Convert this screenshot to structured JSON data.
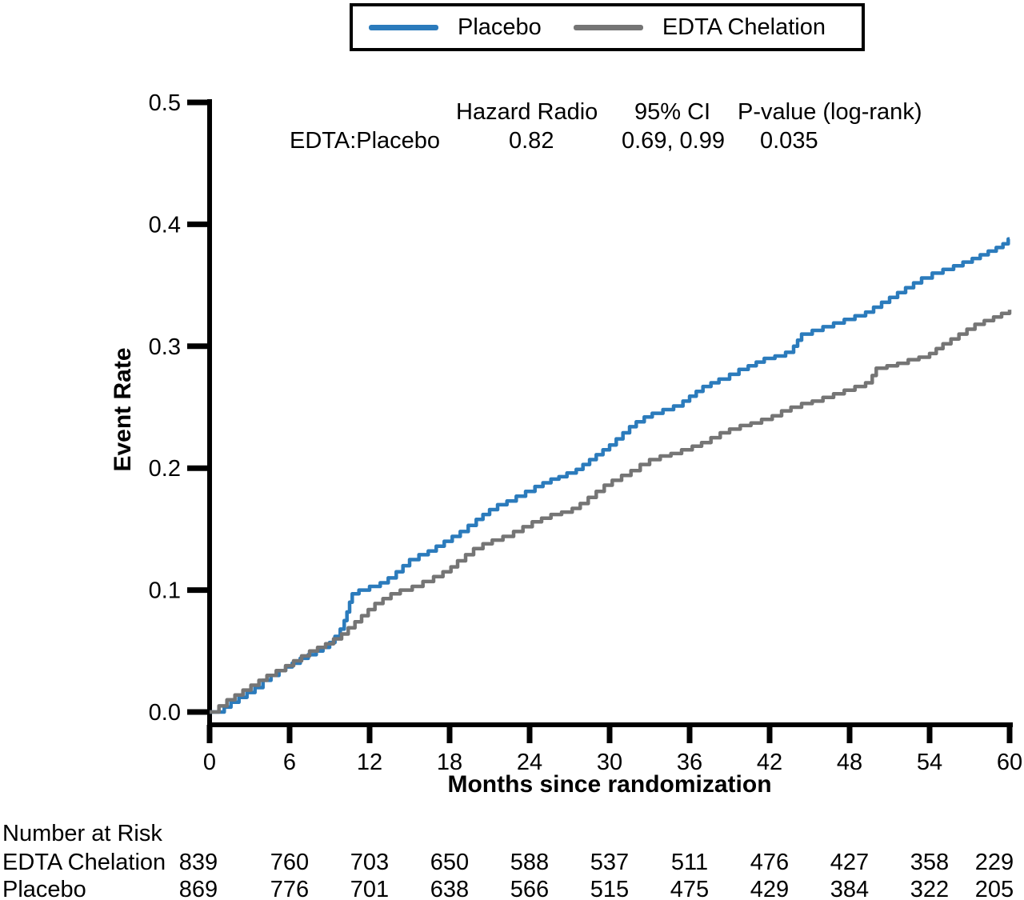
{
  "legend": {
    "items": [
      {
        "label": "Placebo",
        "color": "#2B7BBC"
      },
      {
        "label": "EDTA Chelation",
        "color": "#757575"
      }
    ]
  },
  "stats": {
    "col_hazard": "Hazard Radio",
    "col_ci": "95% CI",
    "col_p": "P-value (log-rank)",
    "row_label": "EDTA:Placebo",
    "hazard_ratio": "0.82",
    "ci": "0.69, 0.99",
    "p_value": "0.035"
  },
  "chart_data": {
    "type": "line",
    "subtype": "step",
    "title": "",
    "xlabel": "Months since randomization",
    "ylabel": "Event Rate",
    "xlim": [
      0,
      60
    ],
    "ylim": [
      0.0,
      0.5
    ],
    "xticks": [
      0,
      6,
      12,
      18,
      24,
      30,
      36,
      42,
      48,
      54,
      60
    ],
    "yticks": [
      "0.0",
      "0.1",
      "0.2",
      "0.3",
      "0.4",
      "0.5"
    ],
    "grid": false,
    "legend_position": "top",
    "series": [
      {
        "name": "Placebo",
        "color": "#2B7BBC",
        "points": [
          [
            0,
            0
          ],
          [
            1.1,
            0.004
          ],
          [
            1.6,
            0.008
          ],
          [
            2.2,
            0.012
          ],
          [
            2.8,
            0.016
          ],
          [
            3.4,
            0.02
          ],
          [
            4,
            0.026
          ],
          [
            4.6,
            0.03
          ],
          [
            5.2,
            0.034
          ],
          [
            5.7,
            0.037
          ],
          [
            6.2,
            0.04
          ],
          [
            6.8,
            0.044
          ],
          [
            7.4,
            0.047
          ],
          [
            8,
            0.05
          ],
          [
            8.5,
            0.053
          ],
          [
            9,
            0.057
          ],
          [
            9.4,
            0.062
          ],
          [
            9.8,
            0.068
          ],
          [
            10.1,
            0.075
          ],
          [
            10.3,
            0.082
          ],
          [
            10.5,
            0.09
          ],
          [
            10.7,
            0.097
          ],
          [
            11.2,
            0.1
          ],
          [
            12,
            0.103
          ],
          [
            12.8,
            0.106
          ],
          [
            13.4,
            0.11
          ],
          [
            14,
            0.115
          ],
          [
            14.5,
            0.12
          ],
          [
            15,
            0.125
          ],
          [
            15.7,
            0.129
          ],
          [
            16.4,
            0.132
          ],
          [
            17,
            0.136
          ],
          [
            17.6,
            0.14
          ],
          [
            18.2,
            0.144
          ],
          [
            18.8,
            0.148
          ],
          [
            19.4,
            0.153
          ],
          [
            20,
            0.158
          ],
          [
            20.5,
            0.162
          ],
          [
            21,
            0.166
          ],
          [
            21.6,
            0.17
          ],
          [
            22.3,
            0.173
          ],
          [
            23,
            0.177
          ],
          [
            23.7,
            0.181
          ],
          [
            24.4,
            0.185
          ],
          [
            25,
            0.188
          ],
          [
            25.6,
            0.191
          ],
          [
            26.2,
            0.193
          ],
          [
            26.8,
            0.196
          ],
          [
            27.5,
            0.199
          ],
          [
            28,
            0.203
          ],
          [
            28.5,
            0.207
          ],
          [
            29,
            0.211
          ],
          [
            29.5,
            0.215
          ],
          [
            30,
            0.219
          ],
          [
            30.5,
            0.224
          ],
          [
            31,
            0.229
          ],
          [
            31.5,
            0.234
          ],
          [
            32,
            0.238
          ],
          [
            32.6,
            0.242
          ],
          [
            33.2,
            0.245
          ],
          [
            34,
            0.248
          ],
          [
            34.8,
            0.251
          ],
          [
            35.5,
            0.255
          ],
          [
            36,
            0.259
          ],
          [
            36.5,
            0.263
          ],
          [
            37,
            0.267
          ],
          [
            37.6,
            0.27
          ],
          [
            38.2,
            0.273
          ],
          [
            39,
            0.277
          ],
          [
            39.7,
            0.281
          ],
          [
            40.4,
            0.284
          ],
          [
            41,
            0.287
          ],
          [
            41.6,
            0.29
          ],
          [
            42.4,
            0.292
          ],
          [
            43.2,
            0.295
          ],
          [
            43.8,
            0.3
          ],
          [
            44.1,
            0.305
          ],
          [
            44.4,
            0.31
          ],
          [
            45.2,
            0.313
          ],
          [
            46,
            0.316
          ],
          [
            46.8,
            0.319
          ],
          [
            47.6,
            0.322
          ],
          [
            48.4,
            0.325
          ],
          [
            49.2,
            0.328
          ],
          [
            49.8,
            0.332
          ],
          [
            50.4,
            0.336
          ],
          [
            51,
            0.34
          ],
          [
            51.6,
            0.344
          ],
          [
            52.2,
            0.348
          ],
          [
            52.8,
            0.352
          ],
          [
            53.4,
            0.356
          ],
          [
            54.2,
            0.36
          ],
          [
            55,
            0.363
          ],
          [
            55.8,
            0.366
          ],
          [
            56.5,
            0.369
          ],
          [
            57.2,
            0.372
          ],
          [
            57.8,
            0.375
          ],
          [
            58.4,
            0.378
          ],
          [
            59,
            0.381
          ],
          [
            59.5,
            0.384
          ],
          [
            59.9,
            0.388
          ],
          [
            60,
            0.388
          ]
        ]
      },
      {
        "name": "EDTA Chelation",
        "color": "#757575",
        "points": [
          [
            0,
            0
          ],
          [
            0.7,
            0.005
          ],
          [
            1.3,
            0.01
          ],
          [
            1.9,
            0.014
          ],
          [
            2.5,
            0.018
          ],
          [
            3.1,
            0.022
          ],
          [
            3.7,
            0.026
          ],
          [
            4.3,
            0.03
          ],
          [
            5,
            0.034
          ],
          [
            5.7,
            0.038
          ],
          [
            6.3,
            0.042
          ],
          [
            6.9,
            0.046
          ],
          [
            7.5,
            0.05
          ],
          [
            8.1,
            0.053
          ],
          [
            8.7,
            0.056
          ],
          [
            9.3,
            0.06
          ],
          [
            9.9,
            0.064
          ],
          [
            10.4,
            0.069
          ],
          [
            10.9,
            0.074
          ],
          [
            11.4,
            0.079
          ],
          [
            11.9,
            0.084
          ],
          [
            12.4,
            0.089
          ],
          [
            13,
            0.093
          ],
          [
            13.6,
            0.097
          ],
          [
            14.3,
            0.1
          ],
          [
            15.2,
            0.103
          ],
          [
            16,
            0.107
          ],
          [
            16.8,
            0.111
          ],
          [
            17.5,
            0.115
          ],
          [
            18.1,
            0.119
          ],
          [
            18.6,
            0.124
          ],
          [
            19.2,
            0.129
          ],
          [
            19.8,
            0.134
          ],
          [
            20.5,
            0.138
          ],
          [
            21.2,
            0.141
          ],
          [
            22,
            0.144
          ],
          [
            22.8,
            0.148
          ],
          [
            23.5,
            0.152
          ],
          [
            24.2,
            0.156
          ],
          [
            24.9,
            0.159
          ],
          [
            25.6,
            0.162
          ],
          [
            26.4,
            0.164
          ],
          [
            27.2,
            0.167
          ],
          [
            27.8,
            0.171
          ],
          [
            28.4,
            0.176
          ],
          [
            29,
            0.181
          ],
          [
            29.6,
            0.186
          ],
          [
            30.2,
            0.19
          ],
          [
            30.9,
            0.194
          ],
          [
            31.6,
            0.198
          ],
          [
            32.3,
            0.203
          ],
          [
            33,
            0.207
          ],
          [
            33.8,
            0.21
          ],
          [
            34.6,
            0.212
          ],
          [
            35.4,
            0.215
          ],
          [
            36.2,
            0.218
          ],
          [
            36.9,
            0.221
          ],
          [
            37.6,
            0.225
          ],
          [
            38.3,
            0.229
          ],
          [
            39,
            0.232
          ],
          [
            39.8,
            0.235
          ],
          [
            40.6,
            0.237
          ],
          [
            41.4,
            0.24
          ],
          [
            42.2,
            0.243
          ],
          [
            42.9,
            0.247
          ],
          [
            43.6,
            0.25
          ],
          [
            44.4,
            0.253
          ],
          [
            45.2,
            0.255
          ],
          [
            46,
            0.258
          ],
          [
            46.8,
            0.261
          ],
          [
            47.6,
            0.264
          ],
          [
            48.4,
            0.267
          ],
          [
            49.2,
            0.27
          ],
          [
            49.7,
            0.276
          ],
          [
            50,
            0.282
          ],
          [
            50.8,
            0.284
          ],
          [
            51.6,
            0.286
          ],
          [
            52.4,
            0.289
          ],
          [
            53.2,
            0.291
          ],
          [
            54,
            0.294
          ],
          [
            54.5,
            0.298
          ],
          [
            55,
            0.302
          ],
          [
            55.6,
            0.306
          ],
          [
            56.2,
            0.31
          ],
          [
            56.8,
            0.314
          ],
          [
            57.4,
            0.318
          ],
          [
            58.1,
            0.321
          ],
          [
            58.8,
            0.324
          ],
          [
            59.4,
            0.327
          ],
          [
            60,
            0.33
          ]
        ]
      }
    ]
  },
  "risk_table": {
    "title": "Number at Risk",
    "months": [
      0,
      6,
      12,
      18,
      24,
      30,
      36,
      42,
      48,
      54,
      60
    ],
    "rows": [
      {
        "label": "EDTA Chelation",
        "values": [
          839,
          760,
          703,
          650,
          588,
          537,
          511,
          476,
          427,
          358,
          229
        ]
      },
      {
        "label": "Placebo",
        "values": [
          869,
          776,
          701,
          638,
          566,
          515,
          475,
          429,
          384,
          322,
          205
        ]
      }
    ]
  }
}
